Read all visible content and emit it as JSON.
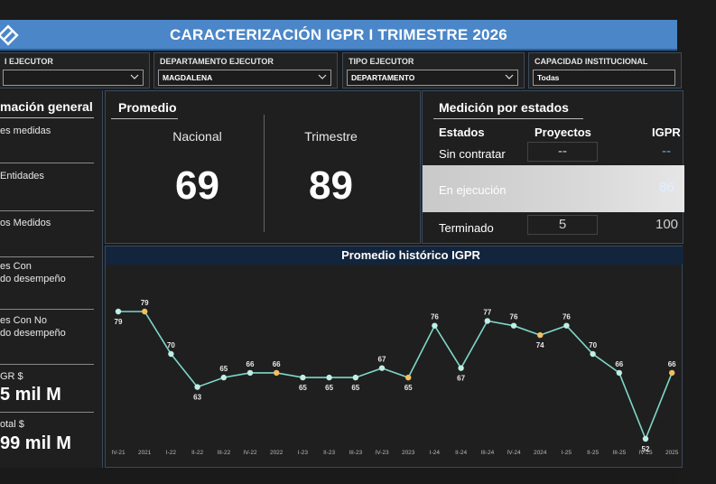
{
  "header": {
    "title": "CARACTERIZACIÓN IGPR I TRIMESTRE 2026",
    "logo_icon": "diamond-logo-icon",
    "background": "#4a86c8"
  },
  "filters": [
    {
      "label": "I EJECUTOR",
      "value": ""
    },
    {
      "label": "DEPARTAMENTO EJECUTOR",
      "value": "MAGDALENA"
    },
    {
      "label": "TIPO EJECUTOR",
      "value": "DEPARTAMENTO"
    },
    {
      "label": "CAPACIDAD INSTITUCIONAL",
      "value": "Todas"
    }
  ],
  "info": {
    "title": "mación general",
    "items": [
      {
        "line1": "es medidas",
        "line2": ""
      },
      {
        "line1": "Entidades",
        "line2": ""
      },
      {
        "line1": "os Medidos",
        "line2": ""
      },
      {
        "line1": "es Con",
        "line2": "do desempeño"
      },
      {
        "line1": "es Con No",
        "line2": "do desempeño"
      }
    ],
    "money": [
      {
        "label": "GR $",
        "value": "5 mil M"
      },
      {
        "label": "otal $",
        "value": "99 mil M"
      }
    ]
  },
  "promedio": {
    "title": "Promedio",
    "nacional_label": "Nacional",
    "nacional_value": "69",
    "trimestre_label": "Trimestre",
    "trimestre_value": "89"
  },
  "medicion": {
    "title": "Medición por estados",
    "headers": {
      "estados": "Estados",
      "proyectos": "Proyectos",
      "igpr": "IGPR"
    },
    "rows": [
      {
        "estado": "Sin contratar",
        "proyectos": "--",
        "igpr": "--"
      },
      {
        "estado": "En ejecución",
        "proyectos": "",
        "igpr": "86"
      },
      {
        "estado": "Terminado",
        "proyectos": "5",
        "igpr": "100"
      }
    ]
  },
  "chart_data": {
    "type": "line",
    "title": "Promedio histórico IGPR",
    "categories": [
      "IV-21",
      "2021",
      "I-22",
      "II-22",
      "III-22",
      "IV-22",
      "2022",
      "I-23",
      "II-23",
      "III-23",
      "IV-23",
      "2023",
      "I-24",
      "II-24",
      "III-24",
      "IV-24",
      "2024",
      "I-25",
      "II-25",
      "III-25",
      "IV-25",
      "2025"
    ],
    "values": [
      79,
      79,
      70,
      63,
      65,
      66,
      66,
      65,
      65,
      65,
      67,
      65,
      76,
      67,
      77,
      76,
      74,
      76,
      70,
      66,
      52,
      66
    ],
    "annual_points": [
      "2021",
      "2022",
      "2023",
      "2024",
      "2025"
    ],
    "colors": {
      "line": "#7fd8c8",
      "quarter_point": "#bfeee6",
      "annual_point": "#f0c060"
    },
    "grid": false,
    "legend": "none"
  }
}
